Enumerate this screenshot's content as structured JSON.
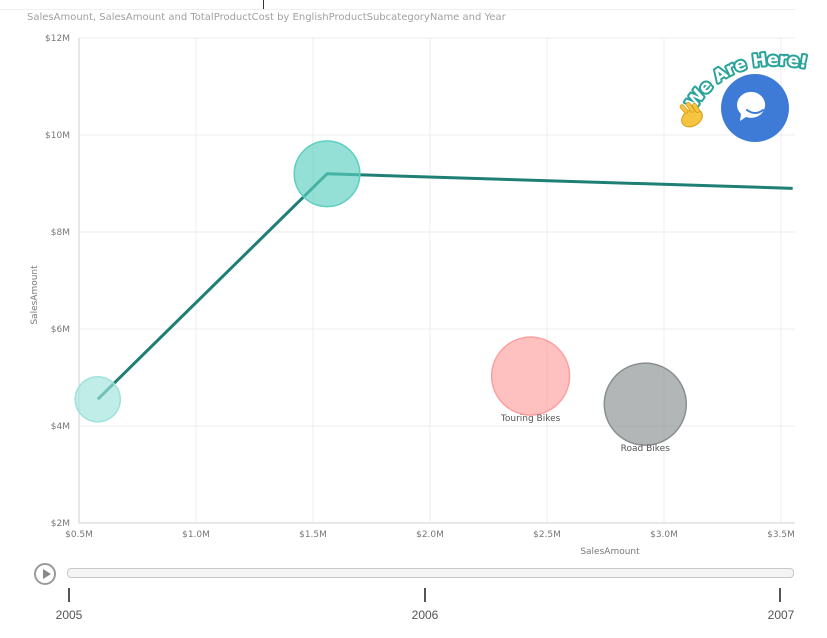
{
  "chart_data": {
    "type": "scatter",
    "title": "SalesAmount, SalesAmount and TotalProductCost by EnglishProductSubcategoryName and Year",
    "xlabel": "SalesAmount",
    "ylabel": "SalesAmount",
    "xlim": [
      500000,
      3550000
    ],
    "ylim": [
      2000000,
      12000000
    ],
    "x_ticks": [
      {
        "value": 500000,
        "label": "$0.5M"
      },
      {
        "value": 1000000,
        "label": "$1.0M"
      },
      {
        "value": 1500000,
        "label": "$1.5M"
      },
      {
        "value": 2000000,
        "label": "$2.0M"
      },
      {
        "value": 2500000,
        "label": "$2.5M"
      },
      {
        "value": 3000000,
        "label": "$3.0M"
      },
      {
        "value": 3500000,
        "label": "$3.5M"
      }
    ],
    "y_ticks": [
      {
        "value": 2000000,
        "label": "$2M"
      },
      {
        "value": 4000000,
        "label": "$4M"
      },
      {
        "value": 6000000,
        "label": "$6M"
      },
      {
        "value": 8000000,
        "label": "$8M"
      },
      {
        "value": 10000000,
        "label": "$10M"
      },
      {
        "value": 12000000,
        "label": "$12M"
      }
    ],
    "grid": true,
    "trail": {
      "color": "#1f7f74",
      "points": [
        {
          "x": 580000,
          "y": 4550000
        },
        {
          "x": 1560000,
          "y": 9200000
        },
        {
          "x": 3550000,
          "y": 8900000
        }
      ]
    },
    "bubbles": [
      {
        "x": 580000,
        "y": 4550000,
        "size": 0.55,
        "color": "#9fe3db",
        "label": ""
      },
      {
        "x": 1560000,
        "y": 9200000,
        "size": 0.8,
        "color": "#5ccfc0",
        "label": ""
      },
      {
        "x": 2430000,
        "y": 5030000,
        "size": 0.95,
        "color": "#ff9e9e",
        "label": "Touring Bikes"
      },
      {
        "x": 2920000,
        "y": 4450000,
        "size": 1.0,
        "color": "#8a8f91",
        "label": "Road Bikes"
      }
    ]
  },
  "play_axis": {
    "years": [
      "2005",
      "2006",
      "2007"
    ]
  },
  "widget": {
    "text": "We Are Here!",
    "accent": "#3e7bd6"
  }
}
